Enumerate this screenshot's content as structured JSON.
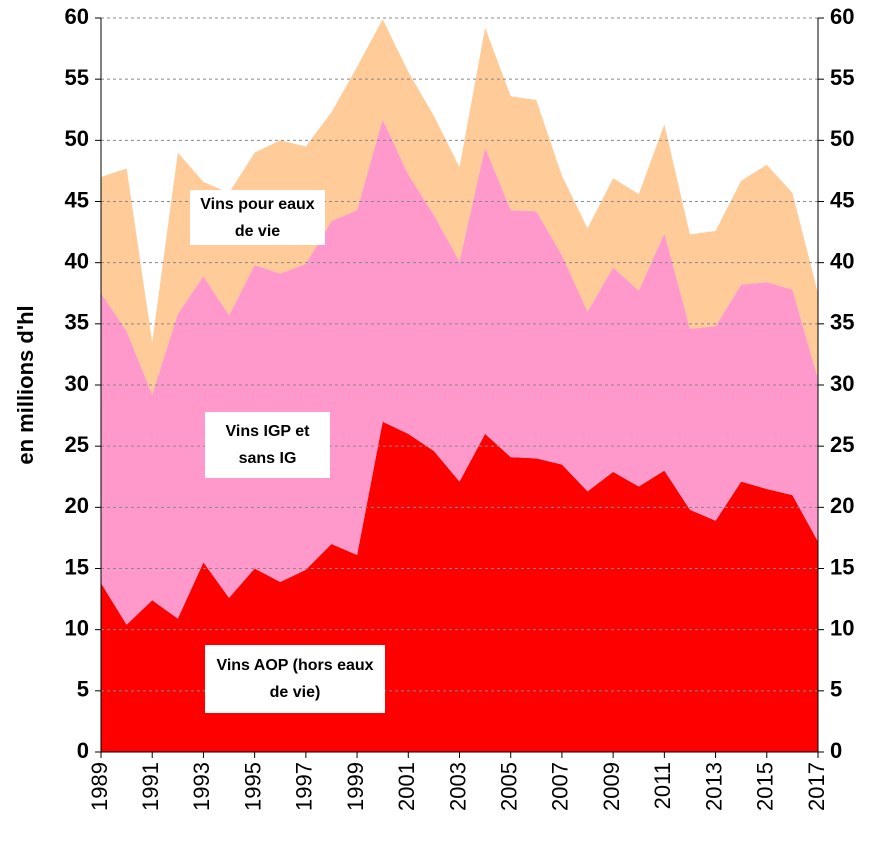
{
  "chart_data": {
    "type": "stacked_area",
    "y_label": "en millions d'hl",
    "x": [
      1989,
      1990,
      1991,
      1992,
      1993,
      1994,
      1995,
      1996,
      1997,
      1998,
      1999,
      2000,
      2001,
      2002,
      2003,
      2004,
      2005,
      2006,
      2007,
      2008,
      2009,
      2010,
      2011,
      2012,
      2013,
      2014,
      2015,
      2016,
      2017
    ],
    "xlim": [
      1989,
      2017
    ],
    "xticks": [
      1989,
      1991,
      1993,
      1995,
      1997,
      1999,
      2001,
      2003,
      2005,
      2007,
      2009,
      2011,
      2013,
      2015,
      2017
    ],
    "ylim": [
      0,
      60
    ],
    "yticks": [
      0,
      5,
      10,
      15,
      20,
      25,
      30,
      35,
      40,
      45,
      50,
      55,
      60
    ],
    "y2lim": [
      0,
      60
    ],
    "y2ticks": [
      0,
      5,
      10,
      15,
      20,
      25,
      30,
      35,
      40,
      45,
      50,
      55,
      60
    ],
    "grid": true,
    "series": [
      {
        "name": "Vins AOP (hors eaux de vie)",
        "color": "#ff0000",
        "values": [
          13.8,
          10.4,
          12.4,
          10.9,
          15.5,
          12.6,
          15.0,
          13.9,
          14.9,
          17.0,
          16.1,
          27.0,
          26.0,
          24.6,
          22.1,
          26.0,
          24.1,
          24.0,
          23.5,
          21.3,
          22.9,
          21.7,
          23.0,
          19.8,
          18.9,
          22.1,
          21.5,
          21.0,
          17.2
        ]
      },
      {
        "name": "Vins IGP et sans IG",
        "color": "#ff99cc",
        "values": [
          23.7,
          24.0,
          16.8,
          24.9,
          23.4,
          23.1,
          24.8,
          25.2,
          25.0,
          26.4,
          28.2,
          24.7,
          21.2,
          19.3,
          18.0,
          23.4,
          20.2,
          20.2,
          17.1,
          14.7,
          16.7,
          16.0,
          19.4,
          14.8,
          15.9,
          16.1,
          16.9,
          16.8,
          13.3
        ]
      },
      {
        "name": "Vins pour eaux de vie",
        "color": "#ffcc99",
        "values": [
          9.5,
          13.3,
          4.3,
          13.2,
          7.7,
          10.0,
          9.2,
          10.9,
          9.6,
          8.9,
          11.7,
          8.2,
          8.4,
          8.1,
          7.7,
          9.8,
          9.3,
          9.1,
          6.5,
          6.8,
          7.3,
          7.9,
          8.9,
          7.7,
          7.8,
          8.5,
          9.6,
          7.9,
          7.0
        ]
      }
    ]
  }
}
